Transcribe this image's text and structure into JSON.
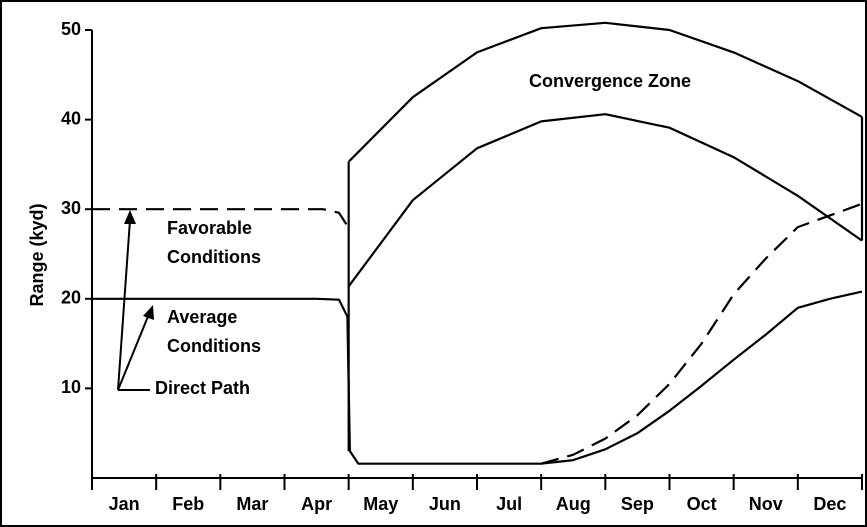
{
  "chart_data": {
    "type": "line",
    "ylabel": "Range (kyd)",
    "categories": [
      "Jan",
      "Feb",
      "Mar",
      "Apr",
      "May",
      "Jun",
      "Jul",
      "Aug",
      "Sep",
      "Oct",
      "Nov",
      "Dec"
    ],
    "xlim": [
      0,
      12
    ],
    "xticks": [
      0,
      1,
      2,
      3,
      4,
      5,
      6,
      7,
      8,
      9,
      10,
      11,
      12
    ],
    "ylim": [
      0,
      50
    ],
    "yticks": [
      10,
      20,
      30,
      40,
      50
    ],
    "series": [
      {
        "color": "#000000",
        "dash": false,
        "x": [
          0,
          3.5,
          3.85,
          3.98,
          4.0,
          4.02,
          4.15,
          7,
          7.5,
          8,
          8.5,
          9,
          9.5,
          10,
          10.5,
          11,
          11.5,
          12
        ],
        "values": [
          20,
          20,
          19.9,
          18,
          10,
          3,
          1.6,
          1.6,
          2,
          3.2,
          5,
          7.5,
          10.3,
          13.2,
          16,
          19,
          20,
          20.8
        ]
      },
      {
        "color": "#000000",
        "dash": true,
        "x": [
          0,
          3.6,
          3.85,
          4.0,
          5,
          7,
          7.5,
          8,
          8.5,
          9,
          9.5,
          10,
          10.5,
          11,
          12
        ],
        "values": [
          30,
          30,
          29.6,
          27.9,
          null,
          1.6,
          2.6,
          4.4,
          7,
          10.5,
          15,
          20.5,
          24.5,
          28,
          30.6
        ]
      },
      {
        "color": "#000000",
        "dash": false,
        "x": [
          4,
          5,
          6,
          7,
          8,
          9,
          10,
          11,
          12
        ],
        "values": [
          35.3,
          42.5,
          47.5,
          50.2,
          50.8,
          50,
          47.5,
          44.3,
          40.3
        ]
      },
      {
        "color": "#000000",
        "dash": false,
        "x": [
          4,
          5,
          6,
          7,
          8,
          9,
          10,
          11,
          12
        ],
        "values": [
          21.4,
          31,
          36.8,
          39.8,
          40.6,
          39.1,
          35.8,
          31.5,
          26.5
        ]
      }
    ],
    "annotations": [
      [
        "Convergence Zone"
      ],
      [
        "Favorable",
        "Conditions"
      ],
      [
        "Average",
        "Conditions"
      ],
      [
        "Direct Path"
      ]
    ]
  }
}
